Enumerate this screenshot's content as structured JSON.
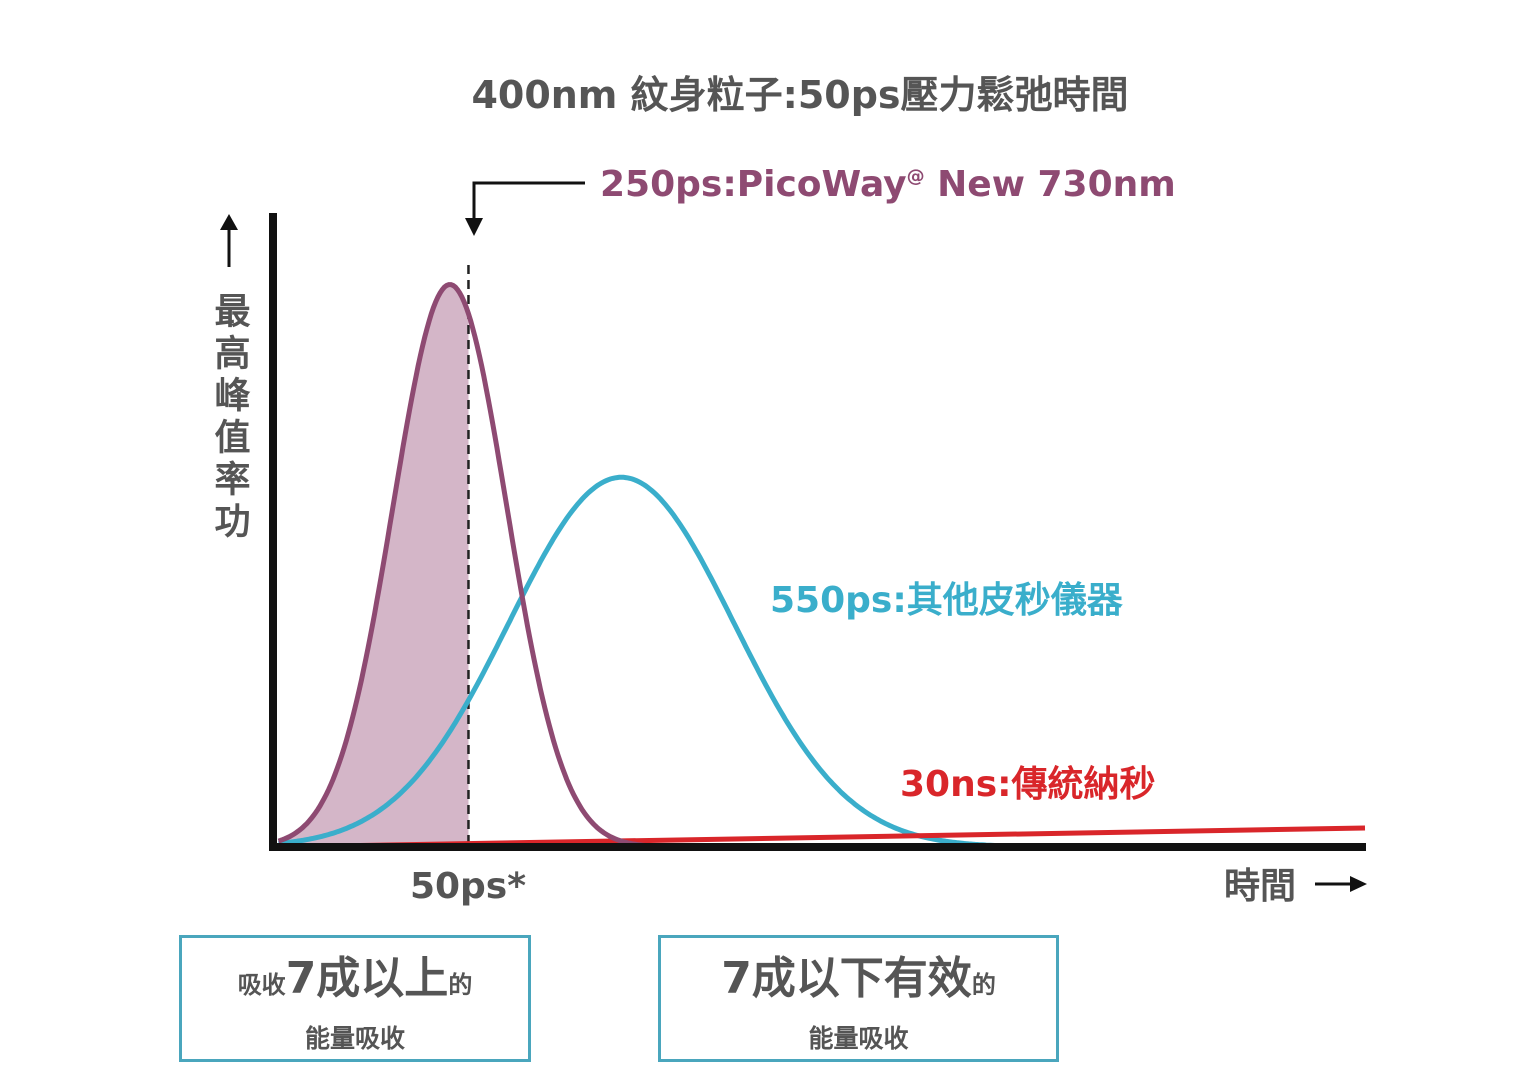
{
  "chart_data": {
    "type": "line",
    "title": "400nm 紋身粒子:50ps壓力鬆弛時間",
    "xlabel": "時間",
    "ylabel": "最高峰值率功",
    "xlim": [
      0,
      100
    ],
    "ylim": [
      0,
      100
    ],
    "grid": false,
    "series": [
      {
        "name": "250ps:PicoWay@ New 730nm",
        "label": "250ps:PicoWay",
        "label_sup": "@",
        "label_rest": " New 730nm",
        "color": "#8e4a72",
        "shape": "pulse",
        "peak_x": 16.2,
        "peak_y": 89,
        "sigma": 5.2
      },
      {
        "name": "550ps:其他皮秒儀器",
        "label": "550ps:其他皮秒儀器",
        "color": "#3aaecb",
        "shape": "pulse",
        "peak_x": 31.9,
        "peak_y": 58.5,
        "sigma": 10.3
      },
      {
        "name": "30ns:傳統納秒",
        "label": "30ns:傳統納秒",
        "color": "#d9262a",
        "shape": "linear",
        "x": [
          0,
          100
        ],
        "y": [
          0,
          3
        ]
      }
    ],
    "marker": {
      "x": 17.9,
      "label": "50ps*",
      "fill_color": "#d4b6c8"
    }
  },
  "boxes": [
    {
      "prefix": "吸收",
      "big": "7成以上",
      "suffix": "的",
      "line2": "能量吸收"
    },
    {
      "prefix": "",
      "big": "7成以下有效",
      "suffix": "的",
      "line2": "能量吸收"
    }
  ]
}
